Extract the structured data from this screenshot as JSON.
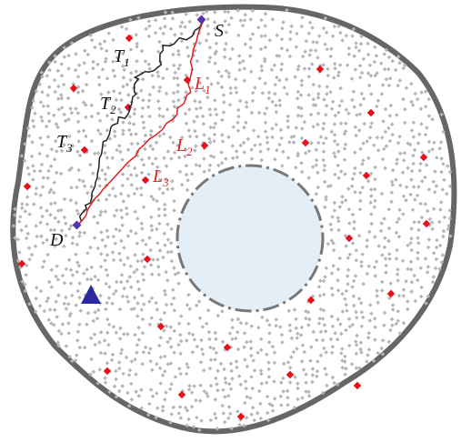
{
  "nodes": [
    {
      "label": "S"
    },
    {
      "label": "D"
    },
    {
      "label": "T",
      "sub": "1"
    },
    {
      "label": "T",
      "sub": "2"
    },
    {
      "label": "T",
      "sub": "3"
    },
    {
      "label": "L",
      "sub": "1"
    },
    {
      "label": "L",
      "sub": "2"
    },
    {
      "label": "L",
      "sub": "3"
    }
  ]
}
